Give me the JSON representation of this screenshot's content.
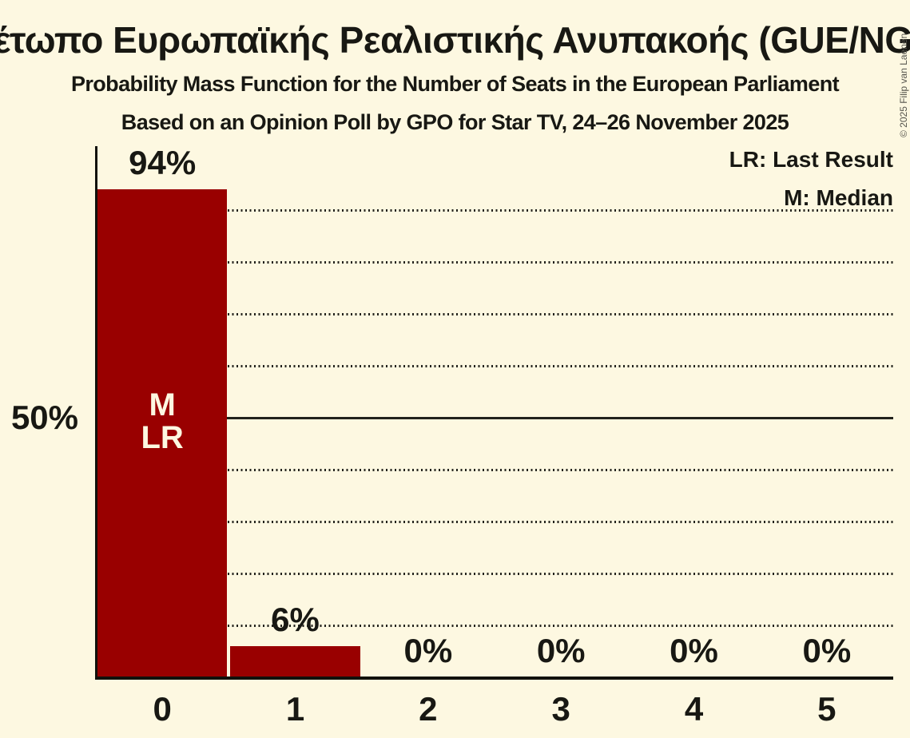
{
  "header": {
    "title": "Μέτωπο Ευρωπαϊκής Ρεαλιστικής Ανυπακοής (GUE/NGL)",
    "subtitle": "Probability Mass Function for the Number of Seats in the European Parliament",
    "poll_info": "Based on an Opinion Poll by GPO for Star TV, 24–26 November 2025"
  },
  "legend": {
    "last_result": "LR: Last Result",
    "median": "M: Median"
  },
  "y_axis": {
    "label": "50%"
  },
  "copyright": "© 2025 Filip van Laenen",
  "chart_data": {
    "type": "bar",
    "title": "Μέτωπο Ευρωπαϊκής Ρεαλιστικής Ανυπακοής (GUE/NGL)",
    "subtitle": "Probability Mass Function for the Number of Seats in the European Parliament",
    "categories": [
      "0",
      "1",
      "2",
      "3",
      "4",
      "5"
    ],
    "values": [
      94,
      6,
      0,
      0,
      0,
      0
    ],
    "value_labels": [
      "94%",
      "6%",
      "0%",
      "0%",
      "0%",
      "0%"
    ],
    "ylim": [
      0,
      100
    ],
    "ytick_labeled": [
      50
    ],
    "gridlines_pct": [
      10,
      20,
      30,
      40,
      50,
      60,
      70,
      80,
      90
    ],
    "solid_gridline_pct": 50,
    "grid_style": "dotted",
    "legend_position": "top-right",
    "annotations": [
      {
        "bar_index": 0,
        "lines": [
          "M",
          "LR"
        ],
        "meaning": "Median and Last Result at 0 seats"
      }
    ],
    "colors": {
      "bar": "#990000",
      "background": "#fdf8e1",
      "text": "#181813",
      "grid": "#22221c",
      "bar_label": "#fdf8e1"
    }
  }
}
